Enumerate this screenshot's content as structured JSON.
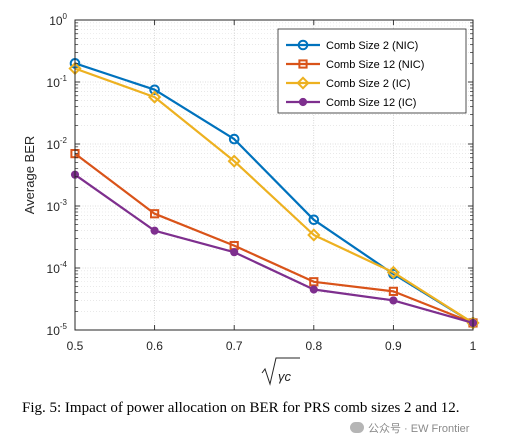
{
  "chart_data": {
    "type": "line",
    "title": "",
    "xlabel": "γc",
    "ylabel": "Average BER",
    "x": [
      0.5,
      0.6,
      0.7,
      0.8,
      0.9,
      1.0
    ],
    "x_tick_labels": [
      "0.5",
      "0.6",
      "0.7",
      "0.8",
      "0.9",
      "1"
    ],
    "xlim": [
      0.5,
      1.0
    ],
    "ylim": [
      1e-05,
      1
    ],
    "yscale": "log",
    "y_ticks": [
      {
        "base": "10",
        "exp": "0"
      },
      {
        "base": "10",
        "exp": "-1"
      },
      {
        "base": "10",
        "exp": "-2"
      },
      {
        "base": "10",
        "exp": "-3"
      },
      {
        "base": "10",
        "exp": "-4"
      },
      {
        "base": "10",
        "exp": "-5"
      }
    ],
    "grid": true,
    "legend_position": "top-right",
    "series": [
      {
        "name": "Comb Size 2 (NIC)",
        "color": "#0072BD",
        "marker": "circle",
        "values": [
          0.2,
          0.075,
          0.012,
          0.0006,
          8e-05,
          1.3e-05
        ]
      },
      {
        "name": "Comb Size 12 (NIC)",
        "color": "#D95319",
        "marker": "square",
        "values": [
          0.007,
          0.00075,
          0.00023,
          6e-05,
          4.2e-05,
          1.3e-05
        ]
      },
      {
        "name": "Comb Size 2 (IC)",
        "color": "#EDB120",
        "marker": "diamond",
        "values": [
          0.165,
          0.057,
          0.0053,
          0.00034,
          8.5e-05,
          1.3e-05
        ]
      },
      {
        "name": "Comb Size 12 (IC)",
        "color": "#7E2F8E",
        "marker": "circle-filled",
        "values": [
          0.0032,
          0.0004,
          0.00018,
          4.5e-05,
          3e-05,
          1.3e-05
        ]
      }
    ]
  },
  "caption": "Fig. 5: Impact of power allocation on BER for PRS comb sizes 2 and 12.",
  "watermark": "公众号 · EW Frontier"
}
